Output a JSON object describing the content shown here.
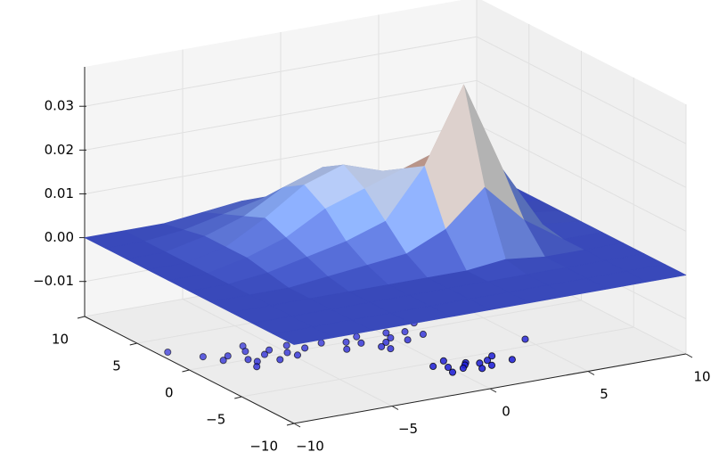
{
  "chart_data": {
    "type": "surface3d",
    "x": [
      -10,
      -8,
      -6,
      -4,
      -2,
      0,
      2,
      4,
      6,
      8,
      10
    ],
    "y": [
      -10,
      -8,
      -6,
      -4,
      -2,
      0,
      2,
      4,
      6,
      8,
      10
    ],
    "z": [
      [
        0,
        0,
        0,
        0,
        0,
        0,
        0,
        0,
        0,
        0,
        0
      ],
      [
        0,
        0,
        0,
        0,
        0,
        0,
        0,
        0,
        0,
        0,
        0
      ],
      [
        0,
        0,
        0,
        0,
        0,
        0,
        0,
        0,
        0,
        0,
        0
      ],
      [
        0,
        0,
        0,
        0,
        0,
        0,
        0,
        0.001,
        0,
        0,
        0
      ],
      [
        0,
        0,
        0,
        0.001,
        0.002,
        0.003,
        0.007,
        0.015,
        0.006,
        0,
        0
      ],
      [
        0,
        0,
        0.001,
        0.003,
        0.005,
        0.008,
        0.019,
        0.036,
        0.015,
        0.001,
        0
      ],
      [
        0,
        0,
        0.002,
        0.005,
        0.01,
        0.013,
        0.016,
        0.019,
        0.007,
        0.001,
        0
      ],
      [
        0,
        0,
        0.002,
        0.007,
        0.013,
        0.016,
        0.013,
        0.008,
        0.003,
        0,
        0
      ],
      [
        0,
        0,
        0.002,
        0.005,
        0.01,
        0.013,
        0.01,
        0.005,
        0.002,
        0,
        0
      ],
      [
        0,
        0,
        0.001,
        0.003,
        0.005,
        0.007,
        0.005,
        0.003,
        0.001,
        0,
        0
      ],
      [
        0,
        0,
        0,
        0.001,
        0.002,
        0.002,
        0.002,
        0.001,
        0,
        0,
        0
      ]
    ],
    "colormap": "coolwarm",
    "xlim": [
      -10,
      10
    ],
    "ylim": [
      -10,
      10
    ],
    "zlim": [
      -0.018,
      0.039
    ],
    "xticks": [
      {
        "value": -10,
        "label": "−10"
      },
      {
        "value": -5,
        "label": "−5"
      },
      0,
      5,
      10
    ],
    "yticks": [
      {
        "value": -10,
        "label": "−10"
      },
      {
        "value": -5,
        "label": "−5"
      },
      0,
      5,
      10
    ],
    "zticks": [
      {
        "value": -0.01,
        "label": "−0.01"
      },
      {
        "value": 0,
        "label": "0.00"
      },
      {
        "value": 0.01,
        "label": "0.01"
      },
      {
        "value": 0.02,
        "label": "0.02"
      },
      {
        "value": 0.03,
        "label": "0.03"
      }
    ],
    "grid": true,
    "scatter": {
      "color": "#1f1fd6",
      "x": [
        -8.5,
        -8,
        -7.5,
        -7,
        -6.8,
        -6.5,
        -6,
        -5.8,
        -5.5,
        -5,
        -4.8,
        -4.5,
        -4,
        -9.5,
        -7.2,
        -6.2,
        -2,
        -1.5,
        -1,
        -0.5,
        0,
        0.5,
        -1.2,
        0.2,
        -2.5,
        1,
        -0.8,
        1.5,
        -3,
        0.8,
        2,
        -0.5,
        0,
        0.5,
        1,
        1.5,
        2,
        0.3,
        1.2,
        -0.2,
        2.5,
        0.8,
        1.8,
        3,
        3,
        -1,
        5
      ],
      "y": [
        1.5,
        0.5,
        1,
        0,
        -0.5,
        1.2,
        0.3,
        -0.8,
        0.8,
        0,
        -0.6,
        1,
        0.2,
        3,
        -1.2,
        2,
        0,
        -0.5,
        -1.5,
        -1,
        -0.5,
        -1.2,
        0.5,
        0.3,
        -1,
        0,
        -2,
        -0.8,
        0.5,
        1.5,
        1,
        -5.5,
        -6,
        -6.5,
        -5.8,
        -6.2,
        -6,
        -5,
        -7,
        -6.8,
        -5.5,
        -6.1,
        -6.8,
        -6.5,
        3,
        3,
        -4
      ]
    }
  }
}
